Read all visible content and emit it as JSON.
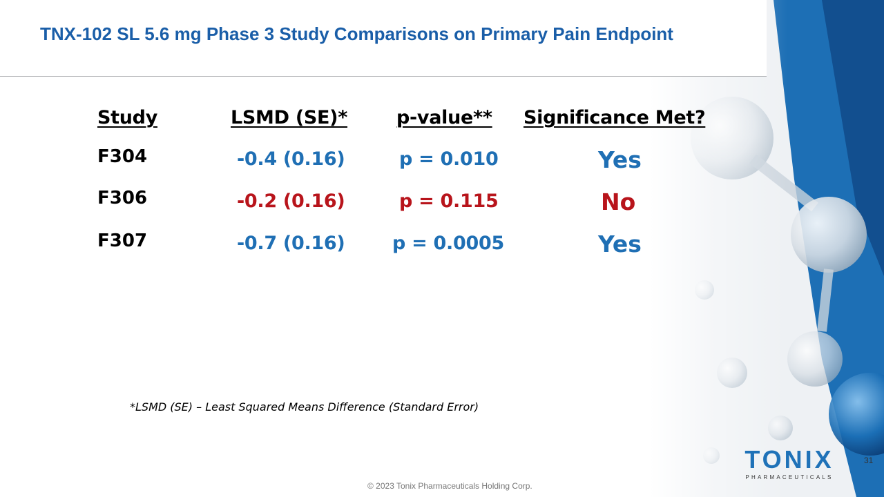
{
  "slide": {
    "title": "TNX-102 SL 5.6 mg Phase 3 Study Comparisons on Primary Pain Endpoint",
    "page_number": "31",
    "copyright": "© 2023 Tonix Pharmaceuticals Holding Corp."
  },
  "table": {
    "headers": {
      "study": "Study",
      "lsmd": "LSMD (SE)*",
      "pvalue": "p-value**",
      "significance": "Significance Met?"
    },
    "rows": [
      {
        "study": "F304",
        "lsmd": "-0.4 (0.16)",
        "pvalue": "p = 0.010",
        "significance": "Yes",
        "color": "#1f6fb4"
      },
      {
        "study": "F306",
        "lsmd": "-0.2 (0.16)",
        "pvalue": "p = 0.115",
        "significance": "No",
        "color": "#b8141b"
      },
      {
        "study": "F307",
        "lsmd": "-0.7 (0.16)",
        "pvalue": "p = 0.0005",
        "significance": "Yes",
        "color": "#1f6fb4"
      }
    ]
  },
  "footnote": "*LSMD (SE) – Least Squared Means Difference (Standard Error)",
  "logo": {
    "name": "TONIX",
    "tagline": "PHARMACEUTICALS"
  },
  "colors": {
    "title": "#1a5ea8",
    "significant": "#1f6fb4",
    "not_significant": "#b8141b",
    "brand": "#1f72b8"
  }
}
